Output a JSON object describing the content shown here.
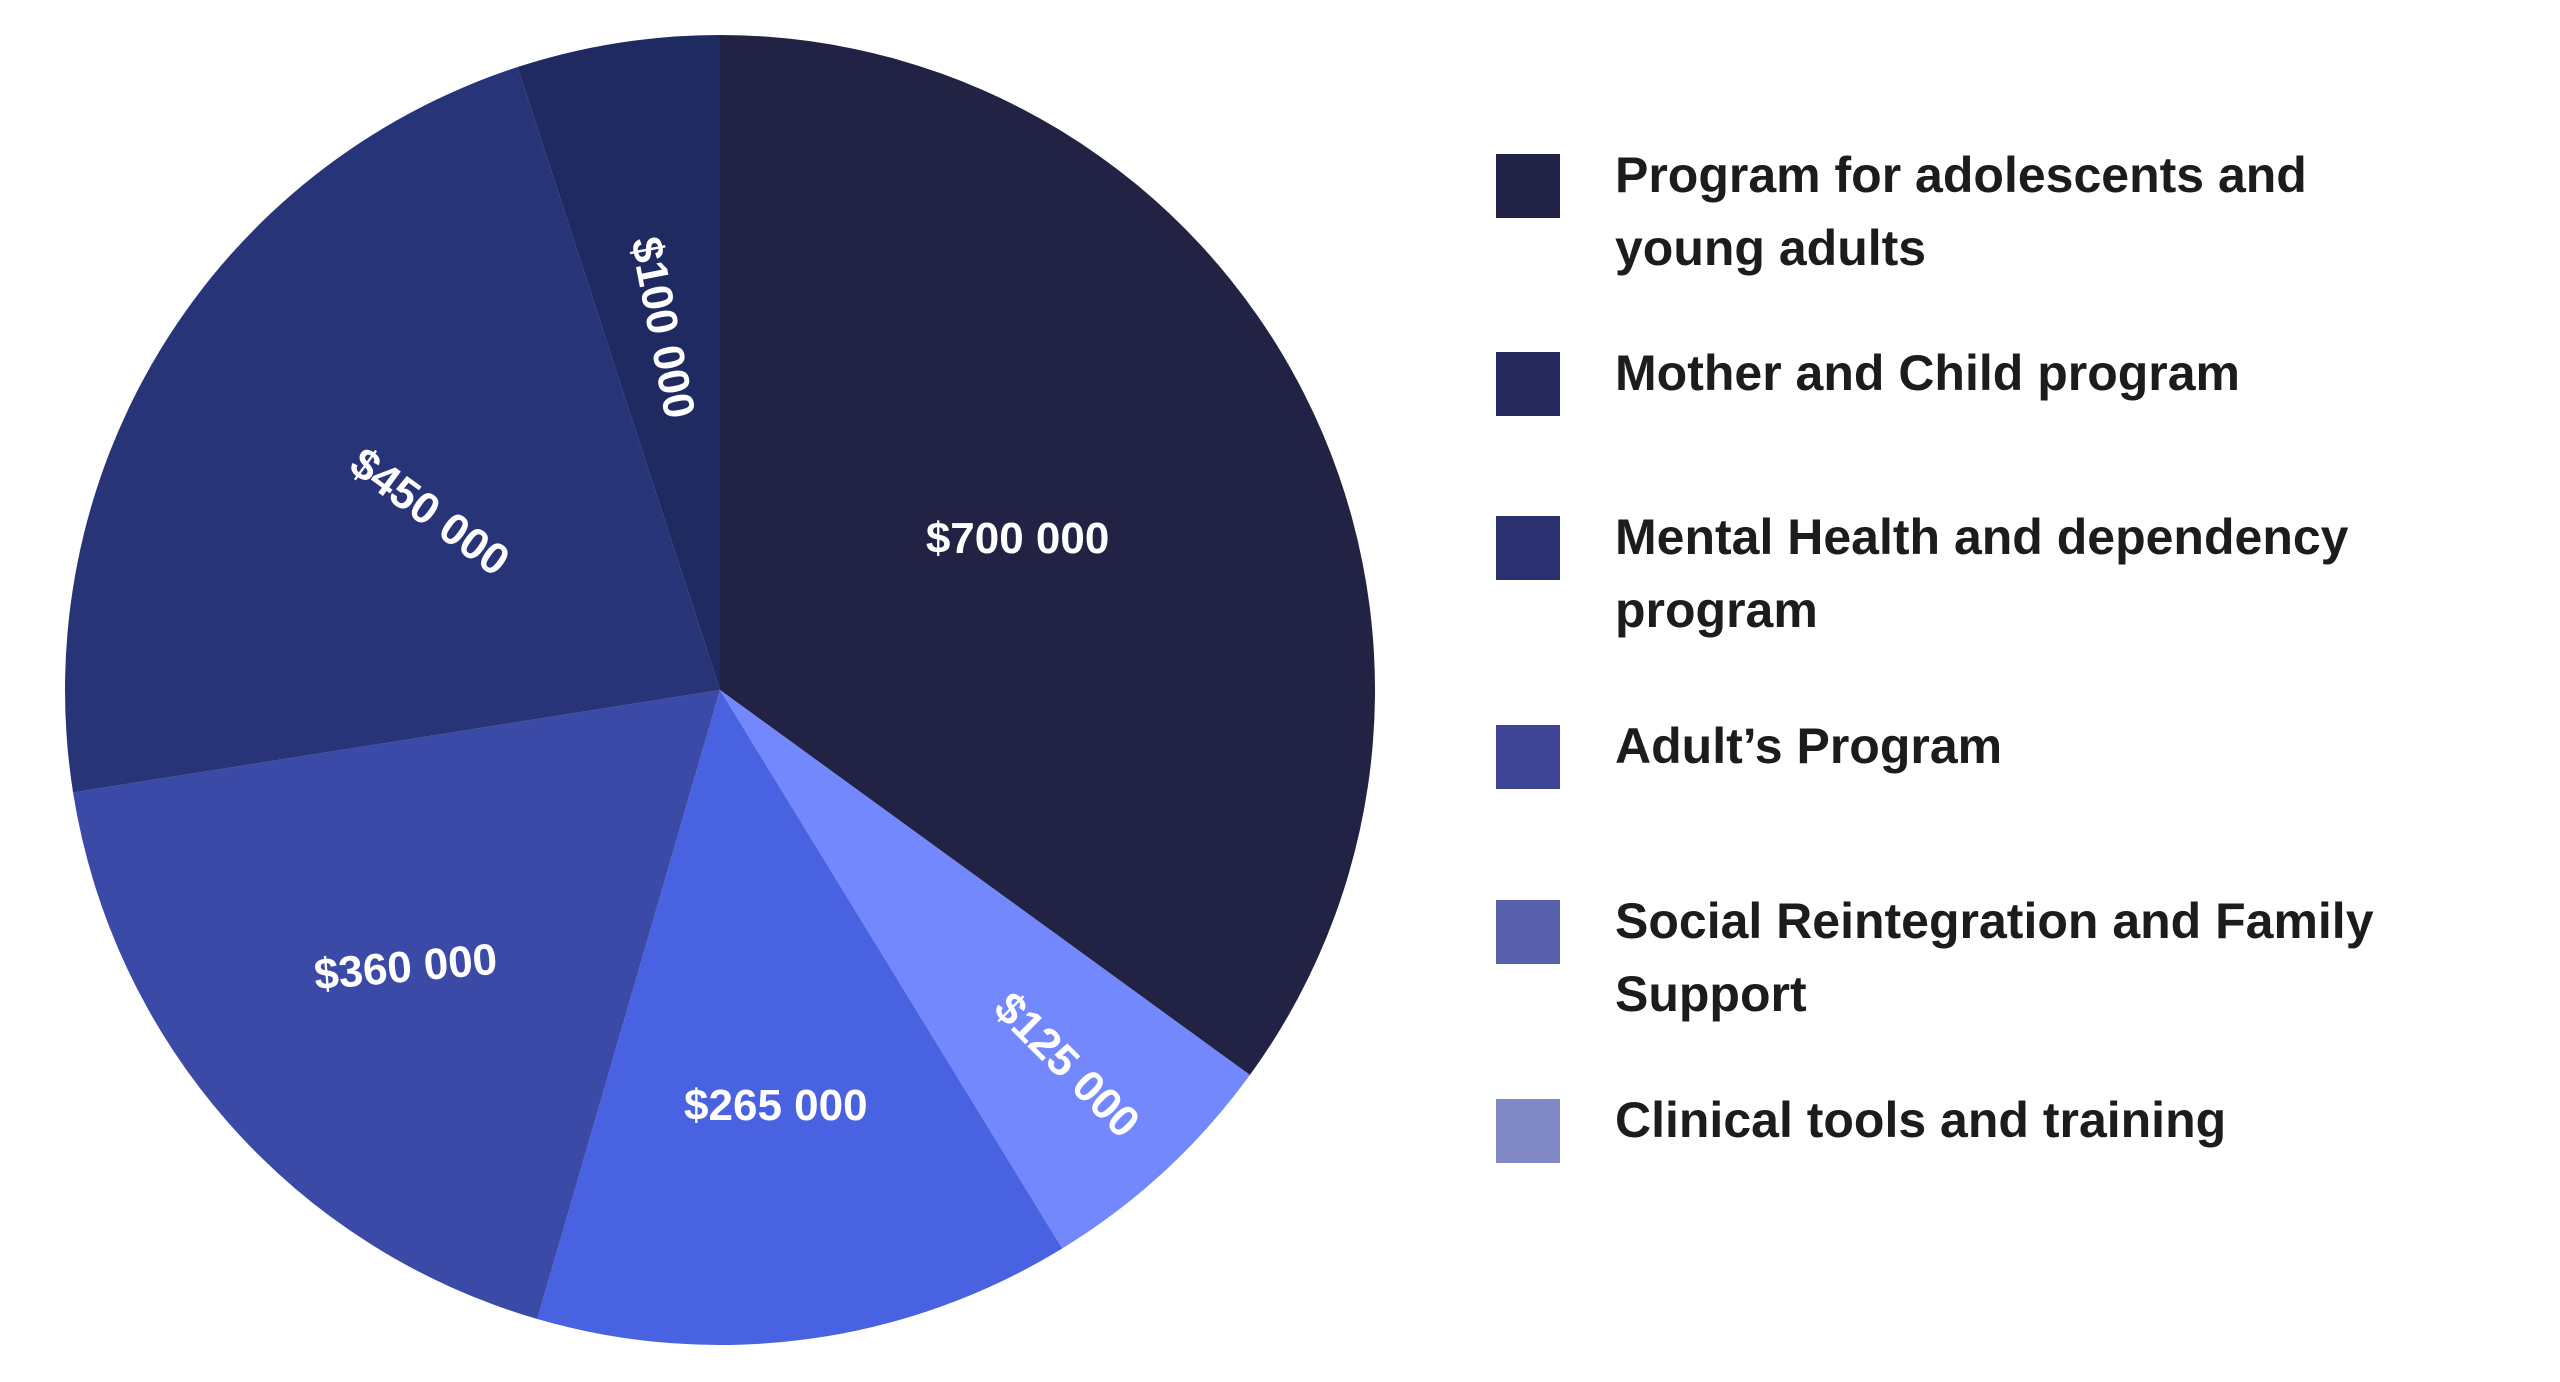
{
  "chart_data": {
    "type": "pie",
    "title": "",
    "start_angle_deg": 0,
    "direction": "clockwise",
    "slices": [
      {
        "label": "$700 000",
        "value": 700000,
        "color": "#212244",
        "label_rotation": 0
      },
      {
        "label": "$125 000",
        "value": 125000,
        "color": "#7388fd",
        "label_rotation": 45
      },
      {
        "label": "$265 000",
        "value": 265000,
        "color": "#4962e2",
        "label_rotation": 0
      },
      {
        "label": "$360 000",
        "value": 360000,
        "color": "#3a4aa6",
        "label_rotation": -5
      },
      {
        "label": "$450 000",
        "value": 450000,
        "color": "#283478",
        "label_rotation": 36
      },
      {
        "label": "$100 000",
        "value": 100000,
        "color": "#1e2a60",
        "label_rotation": 79
      }
    ],
    "legend": {
      "placement": "right",
      "entries": [
        {
          "lines": [
            "Program for adolescents and",
            "young adults"
          ],
          "color": "#222246"
        },
        {
          "lines": [
            "Mother and Child program"
          ],
          "color": "#25285a"
        },
        {
          "lines": [
            "Mental Health and dependency",
            "program"
          ],
          "color": "#2a3070"
        },
        {
          "lines": [
            "Adult’s Program"
          ],
          "color": "#404496"
        },
        {
          "lines": [
            "Social Reintegration and Family",
            "Support"
          ],
          "color": "#575eaa"
        },
        {
          "lines": [
            "Clinical tools and training"
          ],
          "color": "#8089c6"
        }
      ]
    }
  }
}
